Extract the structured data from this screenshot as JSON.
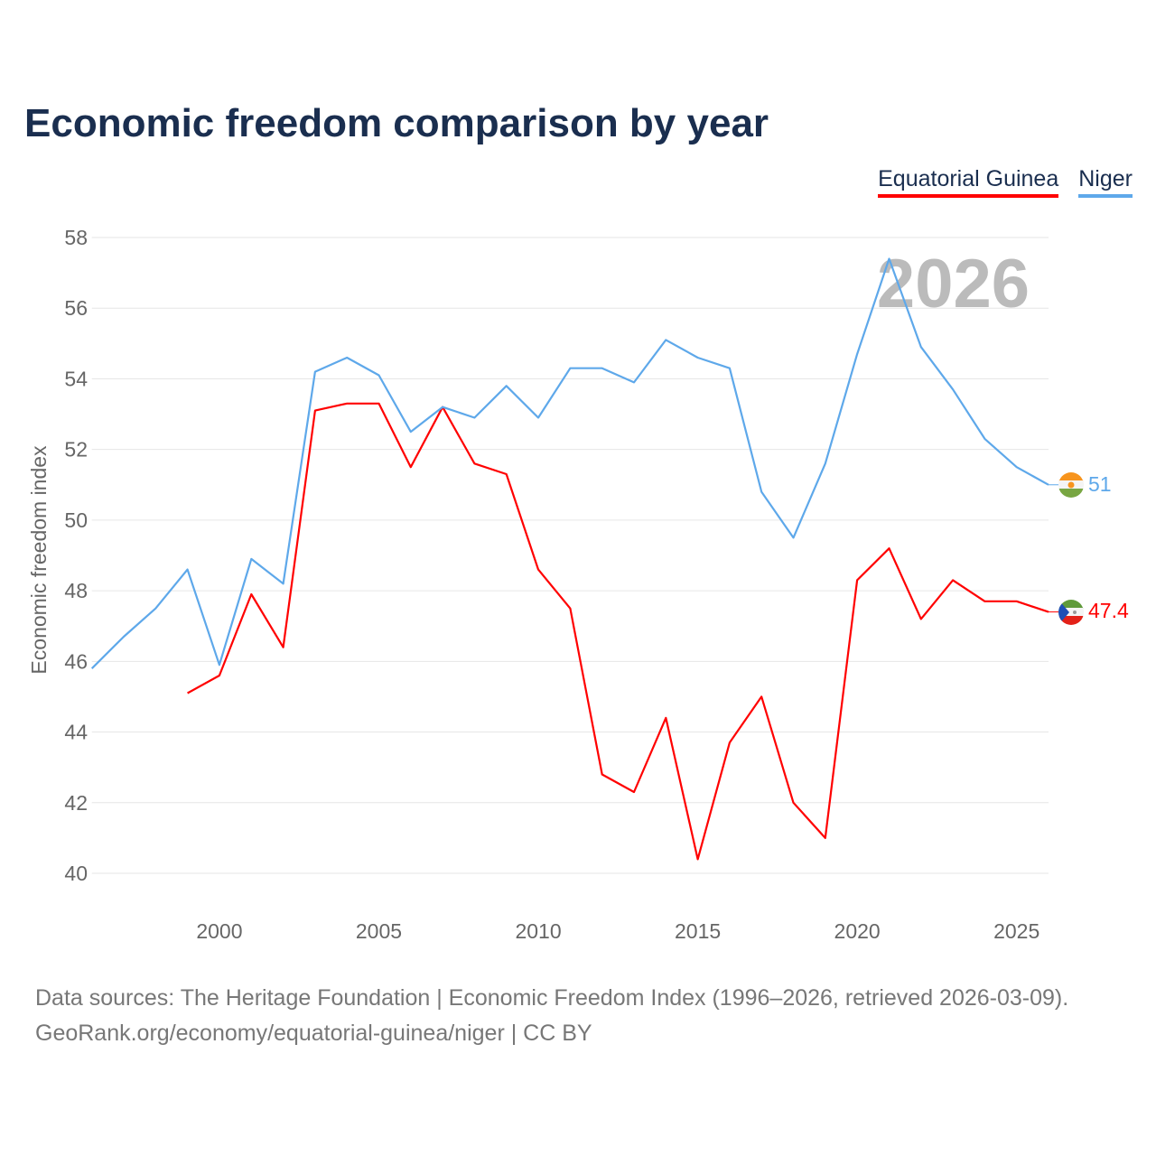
{
  "title": "Economic freedom comparison by year",
  "legend": [
    "Equatorial Guinea",
    "Niger"
  ],
  "source_line1": "Data sources: The Heritage Foundation | Economic Freedom Index (1996–2026, retrieved 2026-03-09).",
  "source_line2": "GeoRank.org/economy/equatorial-guinea/niger | CC BY",
  "chart_data": {
    "type": "line",
    "title": "Economic freedom comparison by year",
    "ylabel": "Economic freedom index",
    "xlabel": "",
    "xlim": [
      1996,
      2026
    ],
    "ylim": [
      40,
      58
    ],
    "yticks": [
      40,
      42,
      44,
      46,
      48,
      50,
      52,
      54,
      56,
      58
    ],
    "xticks": [
      2000,
      2005,
      2010,
      2015,
      2020,
      2025
    ],
    "watermark_year": "2026",
    "grid": true,
    "legend_position": "top-right",
    "series": [
      {
        "name": "Equatorial Guinea",
        "color": "#ff0000",
        "end_label": "47.4",
        "x": [
          1999,
          2000,
          2001,
          2002,
          2003,
          2004,
          2005,
          2006,
          2007,
          2008,
          2009,
          2010,
          2011,
          2012,
          2013,
          2014,
          2015,
          2016,
          2017,
          2018,
          2019,
          2020,
          2021,
          2022,
          2023,
          2024,
          2025,
          2026
        ],
        "values": [
          45.1,
          45.6,
          47.9,
          46.4,
          53.1,
          53.3,
          53.3,
          51.5,
          53.2,
          51.6,
          51.3,
          48.6,
          47.5,
          42.8,
          42.3,
          44.4,
          40.4,
          43.7,
          45.0,
          42.0,
          41.0,
          48.3,
          49.2,
          47.2,
          48.3,
          47.7,
          47.7,
          47.4
        ]
      },
      {
        "name": "Niger",
        "color": "#5ea8ea",
        "end_label": "51",
        "x": [
          1996,
          1997,
          1998,
          1999,
          2000,
          2001,
          2002,
          2003,
          2004,
          2005,
          2006,
          2007,
          2008,
          2009,
          2010,
          2011,
          2012,
          2013,
          2014,
          2015,
          2016,
          2017,
          2018,
          2019,
          2020,
          2021,
          2022,
          2023,
          2024,
          2025,
          2026
        ],
        "values": [
          45.8,
          46.7,
          47.5,
          48.6,
          45.9,
          48.9,
          48.2,
          54.2,
          54.6,
          54.1,
          52.5,
          53.2,
          52.9,
          53.8,
          52.9,
          54.3,
          54.3,
          53.9,
          55.1,
          54.6,
          54.3,
          50.8,
          49.5,
          51.6,
          54.7,
          57.4,
          54.9,
          53.7,
          52.3,
          51.5,
          51.0
        ]
      }
    ]
  }
}
